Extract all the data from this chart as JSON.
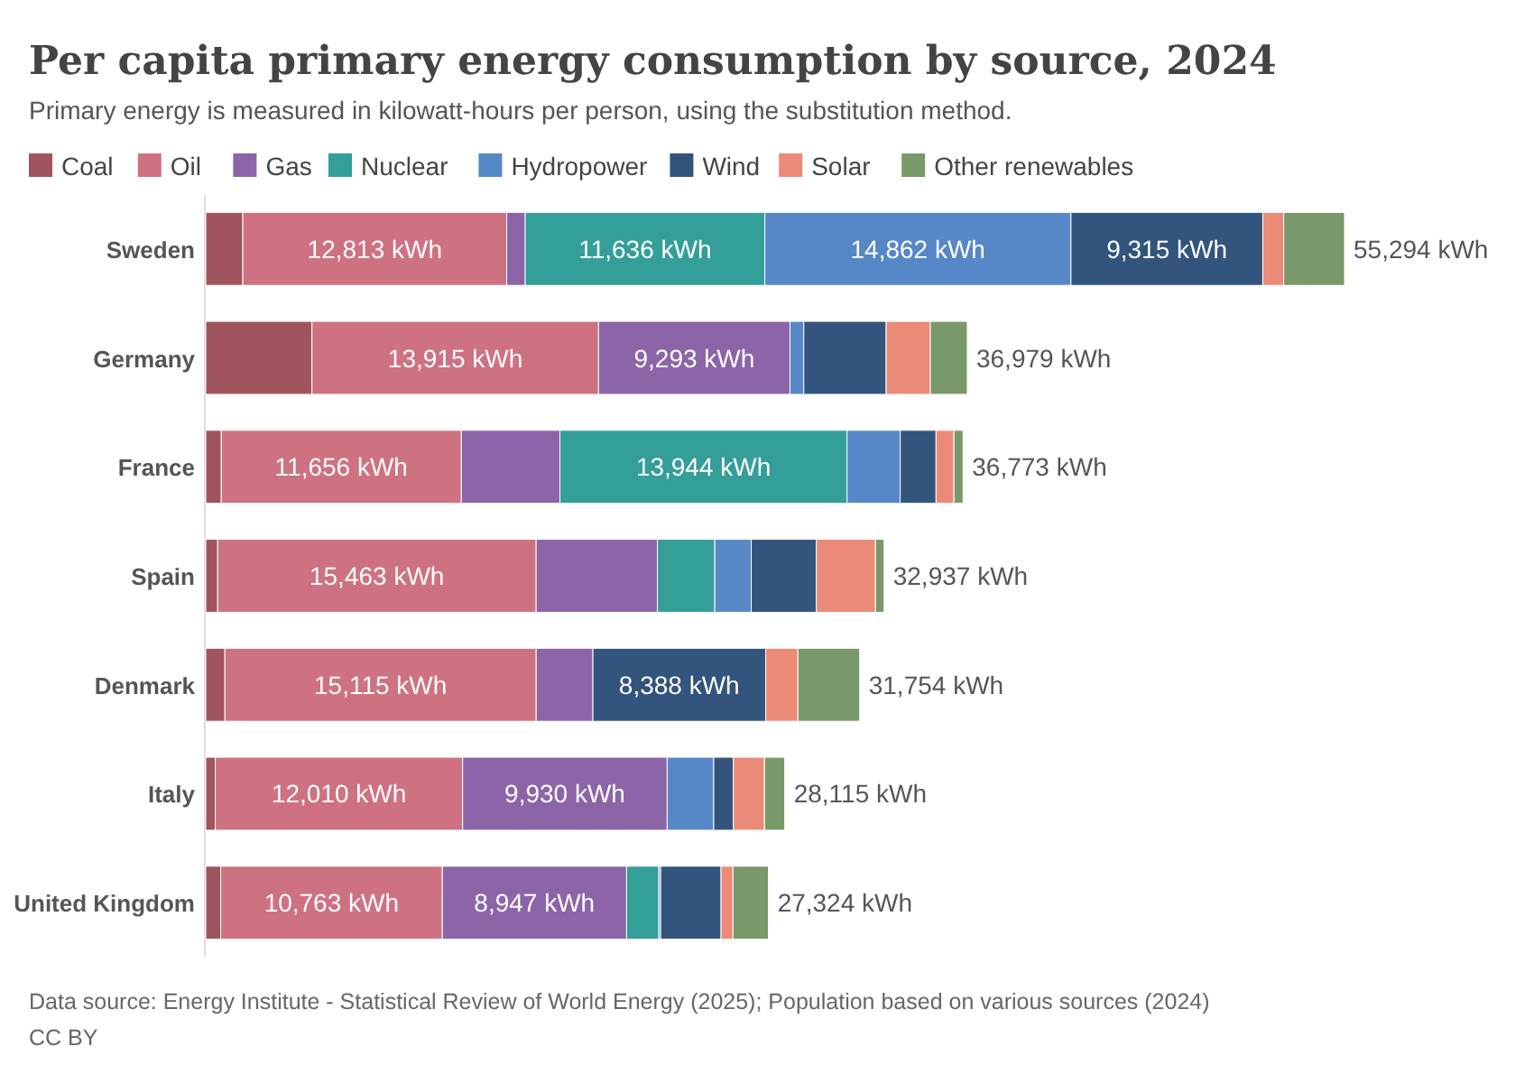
{
  "chart_data": {
    "type": "bar",
    "orientation": "horizontal",
    "stacked": true,
    "title": "Per capita primary energy consumption by source, 2024",
    "subtitle": "Primary energy is measured in kilowatt-hours per person, using the substitution method.",
    "legend": "top left",
    "categories": [
      "Sweden",
      "Germany",
      "France",
      "Spain",
      "Denmark",
      "Italy",
      "United Kingdom"
    ],
    "series": [
      {
        "name": "Coal",
        "color": "#a0545e",
        "values": [
          1800,
          5160,
          755,
          580,
          930,
          465,
          725
        ],
        "value_labels": [
          null,
          null,
          null,
          null,
          null,
          null,
          null
        ]
      },
      {
        "name": "Oil",
        "color": "#ce7281",
        "values": [
          12813,
          13915,
          11656,
          15463,
          15115,
          12010,
          10763
        ],
        "value_labels": [
          "12,813 kWh",
          "13,915 kWh",
          "11,656 kWh",
          "15,463 kWh",
          "15,115 kWh",
          "12,010 kWh",
          "10,763 kWh"
        ]
      },
      {
        "name": "Gas",
        "color": "#8c65a8",
        "values": [
          900,
          9293,
          4785,
          5890,
          2755,
          9930,
          8947
        ],
        "value_labels": [
          null,
          "9,293 kWh",
          null,
          null,
          null,
          "9,930 kWh",
          "8,947 kWh"
        ]
      },
      {
        "name": "Nuclear",
        "color": "#349e98",
        "values": [
          11636,
          0,
          13944,
          2785,
          0,
          0,
          1565
        ],
        "value_labels": [
          "11,636 kWh",
          null,
          "13,944 kWh",
          null,
          null,
          null,
          null
        ]
      },
      {
        "name": "Hydropower",
        "color": "#5688c8",
        "values": [
          14862,
          670,
          2580,
          1770,
          0,
          2260,
          90
        ],
        "value_labels": [
          "14,862 kWh",
          null,
          null,
          null,
          null,
          null,
          null
        ]
      },
      {
        "name": "Wind",
        "color": "#33547d",
        "values": [
          9315,
          4000,
          1740,
          3160,
          8388,
          955,
          2930
        ],
        "value_labels": [
          "9,315 kWh",
          null,
          null,
          null,
          "8,388 kWh",
          null,
          null
        ]
      },
      {
        "name": "Solar",
        "color": "#ec8a78",
        "values": [
          1015,
          2145,
          870,
          2870,
          1565,
          1510,
          580
        ],
        "value_labels": [
          null,
          null,
          null,
          null,
          null,
          null,
          null
        ]
      },
      {
        "name": "Other renewables",
        "color": "#79996a",
        "values": [
          2953,
          1796,
          443,
          419,
          3001,
          985,
          1724
        ],
        "value_labels": [
          null,
          null,
          null,
          null,
          null,
          null,
          null
        ]
      }
    ],
    "totals": [
      "55,294 kWh",
      "36,979 kWh",
      "36,773 kWh",
      "32,937 kWh",
      "31,754 kWh",
      "28,115 kWh",
      "27,324 kWh"
    ],
    "annotations": [
      "Data source: Energy Institute - Statistical Review of World Energy (2025); Population based on various sources (2024)",
      "CC BY"
    ]
  }
}
